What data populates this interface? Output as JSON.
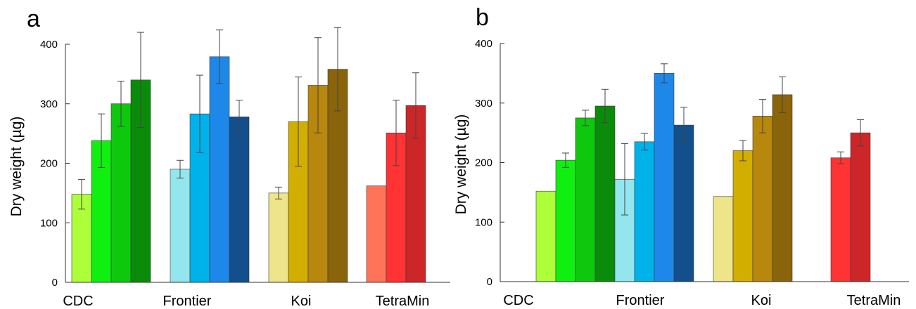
{
  "chart_data": [
    {
      "type": "bar",
      "panel_label": "a",
      "ylabel": "Dry weight (µg)",
      "ylim": [
        0,
        400
      ],
      "yticks": [
        "0",
        "100",
        "200",
        "300",
        "400"
      ],
      "categories": [
        "CDC",
        "Frontier",
        "Koi",
        "TetraMin"
      ],
      "groups": [
        {
          "values": [
            148,
            238,
            300,
            340
          ],
          "errors": [
            25,
            45,
            38,
            80
          ],
          "colors": [
            "#ADFF3A",
            "#10F010",
            "#0EC80E",
            "#0A8C0A"
          ]
        },
        {
          "values": [
            190,
            283,
            379,
            278
          ],
          "errors": [
            15,
            65,
            45,
            28
          ],
          "colors": [
            "#93E6EE",
            "#00B2EA",
            "#1E88EA",
            "#124F8C"
          ]
        },
        {
          "values": [
            150,
            270,
            331,
            358
          ],
          "errors": [
            10,
            75,
            80,
            70
          ],
          "colors": [
            "#EEE48A",
            "#D2AE00",
            "#B8870E",
            "#8A640A"
          ]
        },
        {
          "values": [
            162,
            251,
            297
          ],
          "errors": [
            0,
            55,
            55
          ],
          "colors": [
            "#FF7458",
            "#FF3234",
            "#CC2628"
          ]
        }
      ]
    },
    {
      "type": "bar",
      "panel_label": "b",
      "ylabel": "Dry weight (µg)",
      "ylim": [
        0,
        400
      ],
      "yticks": [
        "0",
        "100",
        "200",
        "300",
        "400"
      ],
      "categories": [
        "CDC",
        "Frontier",
        "Koi",
        "TetraMin"
      ],
      "groups": [
        {
          "values": [
            152,
            204,
            275,
            295
          ],
          "errors": [
            0,
            12,
            13,
            28
          ],
          "colors": [
            "#ADFF3A",
            "#10F010",
            "#0EC80E",
            "#0A8C0A"
          ]
        },
        {
          "values": [
            172,
            235,
            350,
            263
          ],
          "errors": [
            60,
            14,
            16,
            30
          ],
          "colors": [
            "#93E6EE",
            "#00B2EA",
            "#1E88EA",
            "#124F8C"
          ]
        },
        {
          "values": [
            143,
            220,
            278,
            314
          ],
          "errors": [
            0,
            17,
            28,
            30
          ],
          "colors": [
            "#EEE48A",
            "#D2AE00",
            "#B8870E",
            "#8A640A"
          ]
        },
        {
          "values": [
            208,
            250
          ],
          "errors": [
            10,
            22
          ],
          "colors": [
            "#FF3234",
            "#CC2628"
          ]
        }
      ]
    }
  ]
}
